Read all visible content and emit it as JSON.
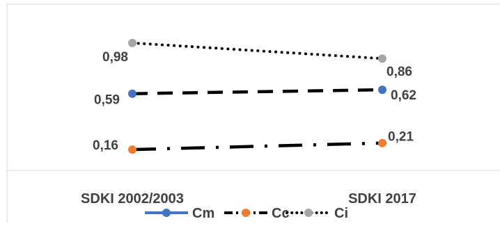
{
  "chart_data": {
    "type": "line",
    "categories": [
      "SDKI 2002/2003",
      "SDKI 2017"
    ],
    "series": [
      {
        "name": "Cm",
        "values": [
          0.59,
          0.62
        ],
        "labels": [
          "0,59",
          "0,62"
        ],
        "color": "#4472C4",
        "line_color": "#000000",
        "line_style": "dashed"
      },
      {
        "name": "Cc",
        "values": [
          0.16,
          0.21
        ],
        "labels": [
          "0,16",
          "0,21"
        ],
        "color": "#ED7D31",
        "line_color": "#000000",
        "line_style": "dash-dot"
      },
      {
        "name": "Ci",
        "values": [
          0.98,
          0.86
        ],
        "labels": [
          "0,98",
          "0,86"
        ],
        "color": "#A5A5A5",
        "line_color": "#000000",
        "line_style": "dotted"
      }
    ],
    "title": "",
    "xlabel": "",
    "ylabel": "",
    "ylim": [
      0,
      1.15
    ],
    "grid": false,
    "legend": "bottom"
  }
}
